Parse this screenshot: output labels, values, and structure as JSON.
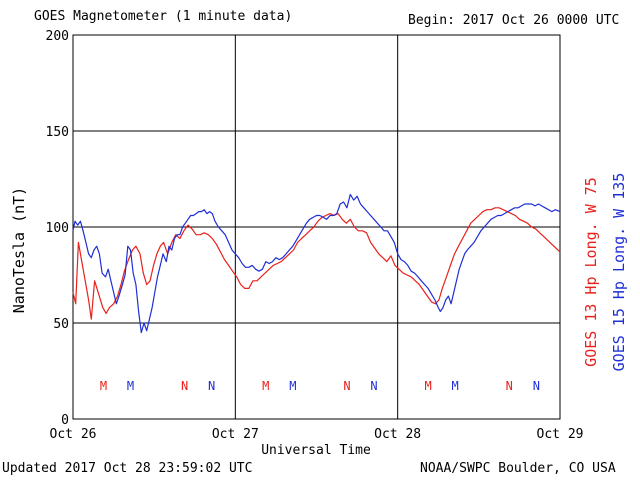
{
  "header": {
    "title": "GOES Magnetometer (1 minute data)",
    "begin": "Begin:  2017 Oct 26 0000 UTC"
  },
  "footer": {
    "updated": "Updated 2017 Oct 28 23:59:02 UTC",
    "credit": "NOAA/SWPC Boulder, CO USA"
  },
  "colors": {
    "goes13": "#e8211b",
    "goes15": "#1f2fd6",
    "grid": "#000000"
  },
  "chart_data": {
    "type": "line",
    "title": "GOES Magnetometer (1 minute data)",
    "xlabel": "Universal Time",
    "ylabel": "NanoTesla (nT)",
    "ylim": [
      0,
      200
    ],
    "xlim": [
      0,
      72
    ],
    "x_unit": "hours since 2017 Oct 26 0000 UTC",
    "yticks": [
      0,
      50,
      100,
      150,
      200
    ],
    "xticks": [
      {
        "x": 0,
        "label": "Oct 26"
      },
      {
        "x": 24,
        "label": "Oct 27"
      },
      {
        "x": 48,
        "label": "Oct 28"
      },
      {
        "x": 72,
        "label": "Oct 29"
      }
    ],
    "grid": true,
    "series": [
      {
        "name": "GOES 13 Hp",
        "label": "GOES 13 Hp  Long. W 75",
        "color": "#e8211b",
        "points": [
          [
            0,
            66
          ],
          [
            0.4,
            60
          ],
          [
            0.8,
            92
          ],
          [
            1.3,
            82
          ],
          [
            1.8,
            72
          ],
          [
            2.3,
            62
          ],
          [
            2.7,
            52
          ],
          [
            3.2,
            72
          ],
          [
            3.8,
            65
          ],
          [
            4.4,
            58
          ],
          [
            4.9,
            55
          ],
          [
            5.4,
            58
          ],
          [
            6.0,
            60
          ],
          [
            6.6,
            64
          ],
          [
            7.1,
            70
          ],
          [
            7.6,
            77
          ],
          [
            8.2,
            83
          ],
          [
            8.8,
            88
          ],
          [
            9.3,
            90
          ],
          [
            9.9,
            86
          ],
          [
            10.4,
            76
          ],
          [
            10.9,
            70
          ],
          [
            11.4,
            72
          ],
          [
            11.9,
            80
          ],
          [
            12.4,
            86
          ],
          [
            12.9,
            90
          ],
          [
            13.4,
            92
          ],
          [
            14.0,
            86
          ],
          [
            14.6,
            92
          ],
          [
            15.2,
            96
          ],
          [
            15.8,
            94
          ],
          [
            16.4,
            98
          ],
          [
            17.0,
            101
          ],
          [
            17.6,
            99
          ],
          [
            18.2,
            96
          ],
          [
            18.8,
            96
          ],
          [
            19.4,
            97
          ],
          [
            20.0,
            96
          ],
          [
            20.6,
            94
          ],
          [
            21.2,
            91
          ],
          [
            21.8,
            87
          ],
          [
            22.4,
            83
          ],
          [
            23.0,
            80
          ],
          [
            23.6,
            77
          ],
          [
            24.2,
            74
          ],
          [
            24.8,
            70
          ],
          [
            25.4,
            68
          ],
          [
            26.0,
            68
          ],
          [
            26.6,
            72
          ],
          [
            27.2,
            72
          ],
          [
            27.8,
            74
          ],
          [
            28.4,
            76
          ],
          [
            29.0,
            78
          ],
          [
            29.6,
            80
          ],
          [
            30.2,
            81
          ],
          [
            30.8,
            82
          ],
          [
            31.4,
            84
          ],
          [
            32.0,
            86
          ],
          [
            32.6,
            88
          ],
          [
            33.2,
            92
          ],
          [
            33.8,
            94
          ],
          [
            34.4,
            96
          ],
          [
            35.0,
            98
          ],
          [
            35.6,
            100
          ],
          [
            36.2,
            103
          ],
          [
            36.8,
            105
          ],
          [
            37.4,
            106
          ],
          [
            38.0,
            107
          ],
          [
            38.6,
            106
          ],
          [
            39.2,
            107
          ],
          [
            39.8,
            104
          ],
          [
            40.4,
            102
          ],
          [
            41.0,
            104
          ],
          [
            41.6,
            100
          ],
          [
            42.2,
            98
          ],
          [
            42.8,
            98
          ],
          [
            43.4,
            97
          ],
          [
            44.0,
            92
          ],
          [
            44.6,
            89
          ],
          [
            45.2,
            86
          ],
          [
            45.8,
            84
          ],
          [
            46.4,
            82
          ],
          [
            47.0,
            85
          ],
          [
            47.6,
            80
          ],
          [
            48.2,
            78
          ],
          [
            48.8,
            76
          ],
          [
            49.4,
            75
          ],
          [
            50.0,
            74
          ],
          [
            50.6,
            72
          ],
          [
            51.2,
            70
          ],
          [
            51.8,
            67
          ],
          [
            52.4,
            64
          ],
          [
            53.0,
            61
          ],
          [
            53.6,
            60
          ],
          [
            54.1,
            62
          ],
          [
            54.6,
            68
          ],
          [
            55.2,
            74
          ],
          [
            55.8,
            80
          ],
          [
            56.4,
            86
          ],
          [
            57.0,
            90
          ],
          [
            57.6,
            94
          ],
          [
            58.2,
            98
          ],
          [
            58.8,
            102
          ],
          [
            59.4,
            104
          ],
          [
            60.0,
            106
          ],
          [
            60.6,
            108
          ],
          [
            61.2,
            109
          ],
          [
            61.8,
            109
          ],
          [
            62.4,
            110
          ],
          [
            63.0,
            110
          ],
          [
            63.6,
            109
          ],
          [
            64.2,
            108
          ],
          [
            64.8,
            107
          ],
          [
            65.4,
            106
          ],
          [
            66.0,
            104
          ],
          [
            66.6,
            103
          ],
          [
            67.2,
            102
          ],
          [
            67.8,
            100
          ],
          [
            68.4,
            99
          ],
          [
            69.0,
            97
          ],
          [
            69.6,
            95
          ],
          [
            70.2,
            93
          ],
          [
            70.8,
            91
          ],
          [
            71.4,
            89
          ],
          [
            72.0,
            87
          ]
        ]
      },
      {
        "name": "GOES 15 Hp",
        "label": "GOES 15 Hp  Long. W 135",
        "color": "#1f2fd6",
        "points": [
          [
            0,
            98
          ],
          [
            0.3,
            103
          ],
          [
            0.7,
            101
          ],
          [
            1.1,
            103
          ],
          [
            1.5,
            98
          ],
          [
            1.9,
            92
          ],
          [
            2.3,
            86
          ],
          [
            2.7,
            84
          ],
          [
            3.1,
            88
          ],
          [
            3.5,
            90
          ],
          [
            3.9,
            86
          ],
          [
            4.3,
            76
          ],
          [
            4.8,
            74
          ],
          [
            5.2,
            78
          ],
          [
            5.6,
            72
          ],
          [
            6.0,
            66
          ],
          [
            6.4,
            60
          ],
          [
            6.8,
            64
          ],
          [
            7.3,
            70
          ],
          [
            7.7,
            75
          ],
          [
            8.1,
            90
          ],
          [
            8.5,
            88
          ],
          [
            8.9,
            76
          ],
          [
            9.3,
            70
          ],
          [
            9.7,
            56
          ],
          [
            10.1,
            45
          ],
          [
            10.5,
            50
          ],
          [
            10.9,
            46
          ],
          [
            11.3,
            52
          ],
          [
            11.7,
            58
          ],
          [
            12.1,
            66
          ],
          [
            12.5,
            74
          ],
          [
            12.9,
            80
          ],
          [
            13.3,
            86
          ],
          [
            13.8,
            82
          ],
          [
            14.2,
            90
          ],
          [
            14.6,
            88
          ],
          [
            15.0,
            94
          ],
          [
            15.4,
            96
          ],
          [
            15.8,
            96
          ],
          [
            16.2,
            100
          ],
          [
            16.6,
            102
          ],
          [
            17.0,
            104
          ],
          [
            17.4,
            106
          ],
          [
            17.8,
            106
          ],
          [
            18.2,
            107
          ],
          [
            18.6,
            108
          ],
          [
            19.0,
            108
          ],
          [
            19.4,
            109
          ],
          [
            19.8,
            107
          ],
          [
            20.2,
            108
          ],
          [
            20.6,
            107
          ],
          [
            21.0,
            103
          ],
          [
            21.5,
            100
          ],
          [
            22.0,
            98
          ],
          [
            22.5,
            96
          ],
          [
            23.0,
            92
          ],
          [
            23.5,
            88
          ],
          [
            24.0,
            86
          ],
          [
            24.5,
            84
          ],
          [
            25.0,
            81
          ],
          [
            25.5,
            79
          ],
          [
            26.0,
            79
          ],
          [
            26.5,
            80
          ],
          [
            27.0,
            78
          ],
          [
            27.5,
            77
          ],
          [
            28.0,
            78
          ],
          [
            28.5,
            82
          ],
          [
            29.0,
            81
          ],
          [
            29.5,
            82
          ],
          [
            30.0,
            84
          ],
          [
            30.5,
            83
          ],
          [
            31.0,
            84
          ],
          [
            31.5,
            86
          ],
          [
            32.0,
            88
          ],
          [
            32.5,
            90
          ],
          [
            33.0,
            93
          ],
          [
            33.5,
            96
          ],
          [
            34.0,
            99
          ],
          [
            34.5,
            102
          ],
          [
            35.0,
            104
          ],
          [
            35.5,
            105
          ],
          [
            36.0,
            106
          ],
          [
            36.5,
            106
          ],
          [
            37.0,
            105
          ],
          [
            37.5,
            104
          ],
          [
            38.0,
            106
          ],
          [
            38.5,
            106
          ],
          [
            39.0,
            107
          ],
          [
            39.5,
            112
          ],
          [
            40.0,
            113
          ],
          [
            40.5,
            110
          ],
          [
            41.0,
            117
          ],
          [
            41.5,
            114
          ],
          [
            42.0,
            116
          ],
          [
            42.5,
            112
          ],
          [
            43.0,
            110
          ],
          [
            43.5,
            108
          ],
          [
            44.0,
            106
          ],
          [
            44.5,
            104
          ],
          [
            45.0,
            102
          ],
          [
            45.5,
            100
          ],
          [
            46.0,
            98
          ],
          [
            46.5,
            98
          ],
          [
            47.0,
            95
          ],
          [
            47.5,
            92
          ],
          [
            48.0,
            86
          ],
          [
            48.5,
            83
          ],
          [
            49.0,
            82
          ],
          [
            49.5,
            80
          ],
          [
            50.0,
            77
          ],
          [
            50.5,
            76
          ],
          [
            51.0,
            74
          ],
          [
            51.5,
            72
          ],
          [
            52.0,
            70
          ],
          [
            52.5,
            68
          ],
          [
            53.0,
            65
          ],
          [
            53.5,
            62
          ],
          [
            54.0,
            58
          ],
          [
            54.3,
            56
          ],
          [
            54.7,
            58
          ],
          [
            55.1,
            62
          ],
          [
            55.5,
            64
          ],
          [
            55.9,
            60
          ],
          [
            56.3,
            66
          ],
          [
            56.7,
            72
          ],
          [
            57.1,
            78
          ],
          [
            57.5,
            82
          ],
          [
            57.9,
            86
          ],
          [
            58.3,
            88
          ],
          [
            58.8,
            90
          ],
          [
            59.3,
            92
          ],
          [
            59.8,
            95
          ],
          [
            60.3,
            98
          ],
          [
            60.8,
            100
          ],
          [
            61.3,
            102
          ],
          [
            61.8,
            104
          ],
          [
            62.3,
            105
          ],
          [
            62.8,
            106
          ],
          [
            63.3,
            106
          ],
          [
            63.8,
            107
          ],
          [
            64.3,
            108
          ],
          [
            64.8,
            109
          ],
          [
            65.3,
            110
          ],
          [
            65.8,
            110
          ],
          [
            66.3,
            111
          ],
          [
            66.8,
            112
          ],
          [
            67.3,
            112
          ],
          [
            67.8,
            112
          ],
          [
            68.3,
            111
          ],
          [
            68.8,
            112
          ],
          [
            69.3,
            111
          ],
          [
            69.8,
            110
          ],
          [
            70.3,
            109
          ],
          [
            70.8,
            108
          ],
          [
            71.3,
            109
          ],
          [
            72.0,
            108
          ]
        ]
      }
    ],
    "markers": [
      {
        "x": 4.5,
        "label": "M",
        "series": "GOES 13 Hp"
      },
      {
        "x": 8.5,
        "label": "M",
        "series": "GOES 15 Hp"
      },
      {
        "x": 16.5,
        "label": "N",
        "series": "GOES 13 Hp"
      },
      {
        "x": 20.5,
        "label": "N",
        "series": "GOES 15 Hp"
      },
      {
        "x": 28.5,
        "label": "M",
        "series": "GOES 13 Hp"
      },
      {
        "x": 32.5,
        "label": "M",
        "series": "GOES 15 Hp"
      },
      {
        "x": 40.5,
        "label": "N",
        "series": "GOES 13 Hp"
      },
      {
        "x": 44.5,
        "label": "N",
        "series": "GOES 15 Hp"
      },
      {
        "x": 52.5,
        "label": "M",
        "series": "GOES 13 Hp"
      },
      {
        "x": 56.5,
        "label": "M",
        "series": "GOES 15 Hp"
      },
      {
        "x": 64.5,
        "label": "N",
        "series": "GOES 13 Hp"
      },
      {
        "x": 68.5,
        "label": "N",
        "series": "GOES 15 Hp"
      }
    ]
  }
}
